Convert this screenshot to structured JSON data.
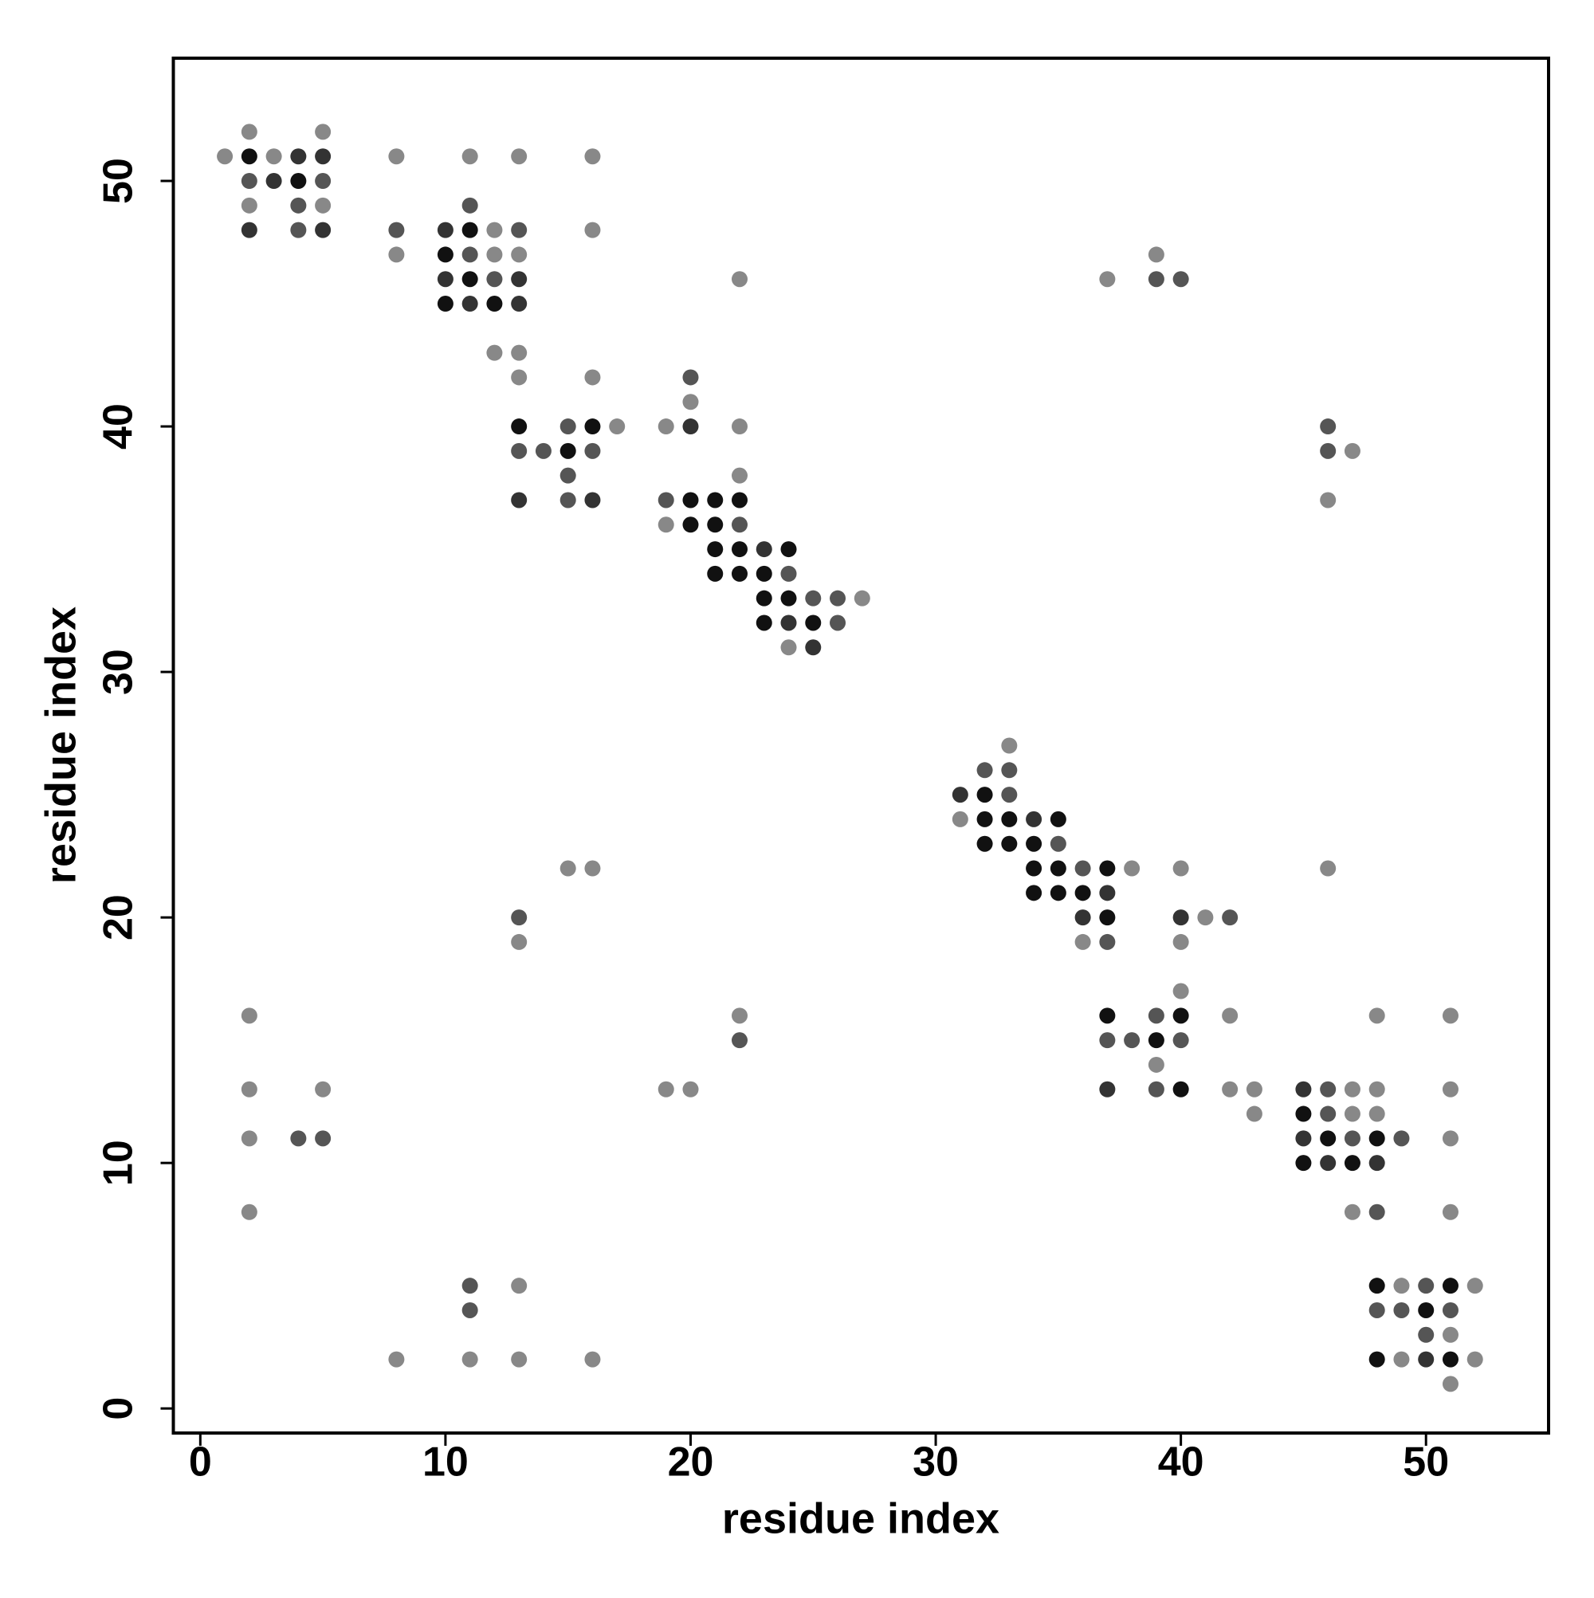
{
  "chart_data": {
    "type": "scatter",
    "xlabel": "residue index",
    "ylabel": "residue index",
    "xlim": [
      -1.1,
      55.0
    ],
    "ylim": [
      -1.0,
      55.0
    ],
    "xticks": [
      0,
      10,
      20,
      30,
      40,
      50
    ],
    "yticks": [
      0,
      10,
      20,
      30,
      40,
      50
    ],
    "series": [
      {
        "color": "#111111",
        "x": [
          2,
          4,
          11,
          10,
          11,
          10,
          12,
          13,
          16,
          15,
          20,
          21,
          22,
          20,
          21,
          21,
          22,
          24,
          21,
          22,
          23,
          23,
          24,
          23,
          25,
          32,
          32,
          33,
          35,
          32,
          33,
          34,
          34,
          35,
          37,
          34,
          35,
          36,
          37,
          37,
          40,
          39,
          40,
          45,
          46,
          48,
          45,
          47,
          48,
          51,
          50,
          48,
          51
        ],
        "values": [
          51,
          50,
          48,
          47,
          46,
          45,
          45,
          40,
          40,
          39,
          37,
          37,
          37,
          36,
          36,
          35,
          35,
          35,
          34,
          34,
          34,
          33,
          33,
          32,
          32,
          25,
          24,
          24,
          24,
          23,
          23,
          23,
          22,
          22,
          22,
          21,
          21,
          21,
          20,
          16,
          16,
          15,
          13,
          12,
          11,
          11,
          10,
          10,
          5,
          5,
          4,
          2,
          2
        ]
      },
      {
        "color": "#333333",
        "x": [
          4,
          5,
          3,
          2,
          5,
          10,
          10,
          13,
          11,
          13,
          20,
          13,
          16,
          23,
          24,
          25,
          31,
          34,
          37,
          36,
          40,
          37,
          45,
          45,
          46,
          48,
          50
        ],
        "values": [
          51,
          51,
          50,
          48,
          48,
          48,
          46,
          46,
          45,
          45,
          40,
          37,
          37,
          35,
          32,
          31,
          25,
          24,
          21,
          20,
          20,
          13,
          13,
          11,
          10,
          10,
          2
        ]
      },
      {
        "color": "#555555",
        "x": [
          2,
          5,
          4,
          11,
          4,
          8,
          13,
          11,
          12,
          39,
          40,
          20,
          15,
          46,
          13,
          14,
          16,
          46,
          15,
          15,
          19,
          22,
          24,
          25,
          26,
          26,
          32,
          33,
          33,
          35,
          36,
          42,
          37,
          39,
          22,
          37,
          38,
          40,
          13,
          39,
          46,
          46,
          47,
          49,
          4,
          5,
          48,
          11,
          50,
          11,
          48,
          49,
          51,
          50
        ],
        "values": [
          50,
          50,
          49,
          49,
          48,
          48,
          48,
          47,
          46,
          46,
          46,
          42,
          40,
          40,
          39,
          39,
          39,
          39,
          38,
          37,
          37,
          36,
          34,
          33,
          33,
          32,
          26,
          26,
          25,
          23,
          22,
          20,
          19,
          16,
          15,
          15,
          15,
          15,
          20,
          13,
          13,
          12,
          11,
          11,
          11,
          11,
          8,
          5,
          5,
          4,
          4,
          4,
          4,
          3
        ]
      },
      {
        "color": "#888888",
        "x": [
          2,
          5,
          1,
          3,
          8,
          11,
          13,
          16,
          2,
          5,
          12,
          16,
          8,
          12,
          13,
          39,
          22,
          37,
          12,
          13,
          13,
          16,
          20,
          17,
          19,
          22,
          47,
          22,
          46,
          19,
          27,
          24,
          33,
          31,
          15,
          16,
          38,
          40,
          46,
          41,
          13,
          36,
          40,
          40,
          2,
          22,
          42,
          48,
          51,
          39,
          2,
          5,
          19,
          20,
          42,
          43,
          47,
          48,
          51,
          43,
          47,
          48,
          2,
          51,
          2,
          47,
          51,
          13,
          49,
          52,
          51,
          8,
          11,
          13,
          16,
          49,
          52,
          51
        ],
        "values": [
          52,
          52,
          51,
          51,
          51,
          51,
          51,
          51,
          49,
          49,
          48,
          48,
          47,
          47,
          47,
          47,
          46,
          46,
          43,
          43,
          42,
          42,
          41,
          40,
          40,
          40,
          39,
          38,
          37,
          36,
          33,
          31,
          27,
          24,
          22,
          22,
          22,
          22,
          22,
          20,
          19,
          19,
          19,
          17,
          16,
          16,
          16,
          16,
          16,
          14,
          13,
          13,
          13,
          13,
          13,
          13,
          13,
          13,
          13,
          12,
          12,
          12,
          11,
          11,
          8,
          8,
          8,
          5,
          5,
          5,
          3,
          2,
          2,
          2,
          2,
          2,
          2,
          1
        ]
      }
    ]
  }
}
